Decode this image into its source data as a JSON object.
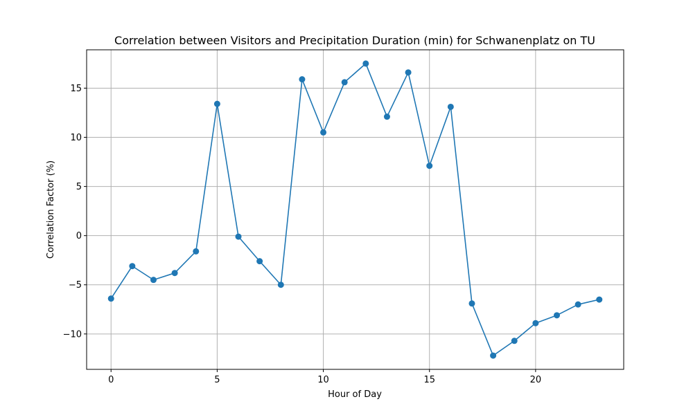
{
  "chart_data": {
    "type": "line",
    "title": "Correlation between Visitors and Precipitation Duration (min) for Schwanenplatz on TU",
    "xlabel": "Hour of Day",
    "ylabel": "Correlation Factor (%)",
    "xlim": [
      -1.15,
      24.15
    ],
    "ylim": [
      -13.6,
      18.9
    ],
    "xticks": [
      0,
      5,
      10,
      15,
      20
    ],
    "yticks": [
      -10,
      -5,
      0,
      5,
      10,
      15
    ],
    "ytick_labels": [
      "−10",
      "−5",
      "0",
      "5",
      "10",
      "15"
    ],
    "grid": true,
    "color": "#1f77b4",
    "series": [
      {
        "x": [
          0,
          1,
          2,
          3,
          4,
          5,
          6,
          7,
          8,
          9,
          10,
          11,
          12,
          13,
          14,
          15,
          16,
          17,
          18,
          19,
          20,
          21,
          22,
          23
        ],
        "values": [
          -6.4,
          -3.1,
          -4.5,
          -3.8,
          -1.6,
          13.4,
          -0.1,
          -2.6,
          -5.0,
          15.9,
          10.5,
          15.6,
          17.5,
          12.1,
          16.6,
          7.1,
          13.1,
          -6.9,
          -12.2,
          -10.7,
          -8.9,
          -8.1,
          -7.0,
          -6.5
        ]
      }
    ]
  }
}
